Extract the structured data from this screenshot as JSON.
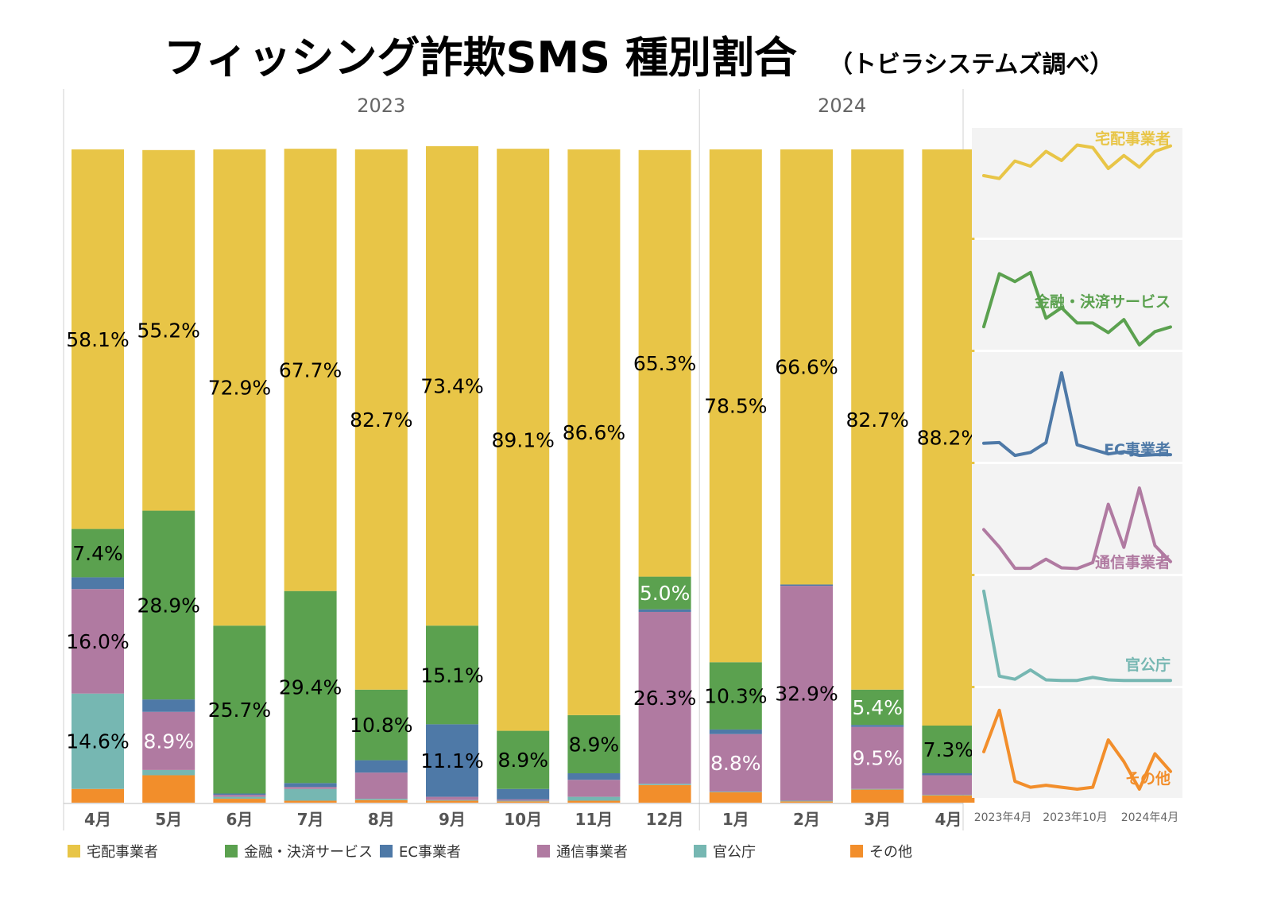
{
  "title": "フィッシング詐欺SMS 種別割合",
  "subtitle": "（トビラシステムズ調べ）",
  "colors": {
    "宅配事業者": "#E8C547",
    "金融・決済サービス": "#5BA14F",
    "EC事業者": "#4E79A7",
    "通信事業者": "#B07AA1",
    "官公庁": "#76B7B2",
    "その他": "#F28E2B"
  },
  "chart_data": [
    {
      "type": "bar",
      "stacked": true,
      "normalized": true,
      "unit": "%",
      "ylim": [
        0,
        100
      ],
      "year_groups": [
        {
          "label": "2023",
          "count": 9
        },
        {
          "label": "2024",
          "count": 4
        }
      ],
      "categories": [
        "4月",
        "5月",
        "6月",
        "7月",
        "8月",
        "9月",
        "10月",
        "11月",
        "12月",
        "1月",
        "2月",
        "3月",
        "4月"
      ],
      "series": [
        {
          "name": "その他",
          "values": [
            2.1,
            4.2,
            0.6,
            0.3,
            0.4,
            0.3,
            0.2,
            0.3,
            2.7,
            1.6,
            0.2,
            2.0,
            1.1
          ]
        },
        {
          "name": "官公庁",
          "values": [
            14.6,
            0.8,
            0.3,
            1.8,
            0.2,
            0.1,
            0.1,
            0.6,
            0.2,
            0.1,
            0.1,
            0.1,
            0.1
          ]
        },
        {
          "name": "通信事業者",
          "values": [
            16.0,
            8.9,
            0.3,
            0.3,
            4.0,
            0.5,
            0.2,
            2.6,
            26.3,
            8.8,
            32.9,
            9.5,
            3.0
          ]
        },
        {
          "name": "EC事業者",
          "values": [
            1.8,
            1.9,
            0.2,
            0.6,
            1.9,
            11.1,
            1.6,
            1.0,
            0.4,
            0.7,
            0.2,
            0.3,
            0.3
          ]
        },
        {
          "name": "金融・決済サービス",
          "values": [
            7.4,
            28.9,
            25.7,
            29.4,
            10.8,
            15.1,
            8.9,
            8.9,
            5.0,
            10.3,
            0.0,
            5.4,
            7.3
          ]
        },
        {
          "name": "宅配事業者",
          "values": [
            58.1,
            55.2,
            72.9,
            67.7,
            82.7,
            73.4,
            89.1,
            86.6,
            65.3,
            78.5,
            66.6,
            82.7,
            88.2
          ]
        }
      ],
      "data_labels": [
        {
          "series": "宅配事業者",
          "labels": [
            "58.1%",
            "55.2%",
            "72.9%",
            "67.7%",
            "82.7%",
            "73.4%",
            "89.1%",
            "86.6%",
            "65.3%",
            "78.5%",
            "66.6%",
            "82.7%",
            "88.2%"
          ]
        },
        {
          "series": "金融・決済サービス",
          "labels": [
            "7.4%",
            "28.9%",
            "25.7%",
            "29.4%",
            "10.8%",
            "15.1%",
            "8.9%",
            "8.9%",
            "5.0%",
            "10.3%",
            "",
            "5.4%",
            "7.3%"
          ]
        },
        {
          "series": "EC事業者",
          "labels": [
            "",
            "",
            "",
            "",
            "",
            "11.1%",
            "",
            "",
            "",
            "",
            "",
            "",
            ""
          ]
        },
        {
          "series": "通信事業者",
          "labels": [
            "16.0%",
            "8.9%",
            "",
            "",
            "",
            "",
            "",
            "",
            "26.3%",
            "8.8%",
            "32.9%",
            "9.5%",
            ""
          ]
        },
        {
          "series": "官公庁",
          "labels": [
            "14.6%",
            "",
            "",
            "",
            "",
            "",
            "",
            "",
            "",
            "",
            "",
            "",
            ""
          ]
        }
      ],
      "legend": {
        "position": "bottom",
        "items": [
          "宅配事業者",
          "金融・決済サービス",
          "EC事業者",
          "通信事業者",
          "官公庁",
          "その他"
        ]
      }
    },
    {
      "type": "line",
      "small_multiples": true,
      "x": [
        "2023年4月",
        "2023年5月",
        "2023年6月",
        "2023年7月",
        "2023年8月",
        "2023年9月",
        "2023年10月",
        "2023年11月",
        "2023年12月",
        "2024年1月",
        "2024年2月",
        "2024年3月",
        "2024年4月"
      ],
      "x_tick_labels": [
        "2023年4月",
        "2023年10月",
        "2024年4月"
      ],
      "panels": [
        {
          "name": "宅配事業者",
          "ylim": [
            0,
            100
          ],
          "values": [
            58.1,
            55.2,
            72.9,
            67.7,
            82.7,
            73.4,
            89.1,
            86.6,
            65.3,
            78.5,
            66.6,
            82.7,
            88.2
          ]
        },
        {
          "name": "金融・決済サービス",
          "ylim": [
            0,
            40
          ],
          "values": [
            7.4,
            28.9,
            25.7,
            29.4,
            10.8,
            15.1,
            8.9,
            8.9,
            5.0,
            10.3,
            0.0,
            5.4,
            7.3
          ]
        },
        {
          "name": "EC事業者",
          "ylim": [
            0,
            13
          ],
          "values": [
            1.8,
            1.9,
            0.2,
            0.6,
            1.9,
            11.1,
            1.6,
            1.0,
            0.4,
            0.7,
            0.2,
            0.3,
            0.3
          ]
        },
        {
          "name": "通信事業者",
          "ylim": [
            0,
            40
          ],
          "values": [
            16.0,
            8.9,
            0.3,
            0.3,
            4.0,
            0.5,
            0.2,
            2.6,
            26.3,
            8.8,
            32.9,
            9.5,
            3.0
          ]
        },
        {
          "name": "官公庁",
          "ylim": [
            0,
            16
          ],
          "values": [
            14.6,
            0.8,
            0.3,
            1.8,
            0.2,
            0.1,
            0.1,
            0.6,
            0.2,
            0.1,
            0.1,
            0.1,
            0.1
          ]
        },
        {
          "name": "その他",
          "ylim": [
            0,
            5
          ],
          "values": [
            2.1,
            4.2,
            0.6,
            0.3,
            0.4,
            0.3,
            0.2,
            0.3,
            2.7,
            1.6,
            0.2,
            2.0,
            1.1
          ]
        }
      ]
    }
  ]
}
